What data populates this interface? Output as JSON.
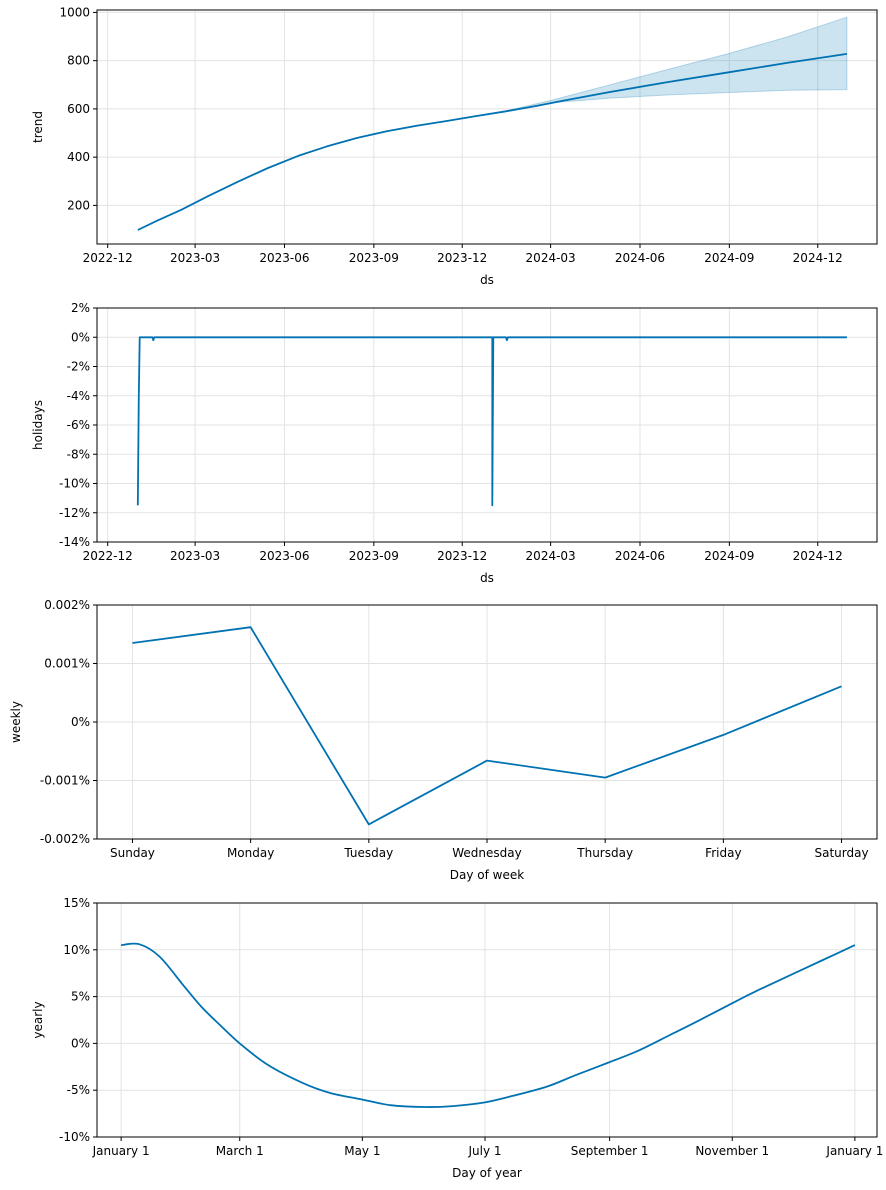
{
  "chart_data": [
    {
      "type": "line",
      "panel": "trend",
      "xlabel": "ds",
      "ylabel": "trend",
      "x_axis_type": "date",
      "xlim": [
        "2022-11-20",
        "2025-01-31"
      ],
      "ylim": [
        40,
        1010
      ],
      "x_ticks": [
        "2022-12-01",
        "2023-03-01",
        "2023-06-01",
        "2023-09-01",
        "2023-12-01",
        "2024-03-01",
        "2024-06-01",
        "2024-09-01",
        "2024-12-01"
      ],
      "x_tick_labels": [
        "2022-12",
        "2023-03",
        "2023-06",
        "2023-09",
        "2023-12",
        "2024-03",
        "2024-06",
        "2024-09",
        "2024-12"
      ],
      "y_ticks": [
        200,
        400,
        600,
        800,
        1000
      ],
      "y_tick_labels": [
        "200",
        "400",
        "600",
        "800",
        "1000"
      ],
      "grid": true,
      "series": [
        {
          "x": [
            "2023-01-01",
            "2023-01-20",
            "2023-02-15",
            "2023-03-15",
            "2023-04-15",
            "2023-05-15",
            "2023-06-15",
            "2023-07-15",
            "2023-08-15",
            "2023-09-15",
            "2023-10-15",
            "2023-11-15",
            "2023-12-15",
            "2024-01-15",
            "2024-02-15",
            "2024-03-15",
            "2024-05-01",
            "2024-07-01",
            "2024-09-01",
            "2024-11-01",
            "2024-12-31"
          ],
          "values": [
            98,
            135,
            182,
            240,
            300,
            355,
            405,
            445,
            480,
            508,
            530,
            550,
            570,
            590,
            612,
            635,
            670,
            712,
            752,
            792,
            828
          ]
        }
      ],
      "uncertainty_band": {
        "x": [
          "2024-01-15",
          "2024-03-01",
          "2024-05-01",
          "2024-07-01",
          "2024-09-01",
          "2024-11-01",
          "2024-12-31"
        ],
        "upper": [
          592,
          635,
          700,
          765,
          830,
          900,
          980
        ],
        "lower": [
          588,
          625,
          645,
          658,
          668,
          677,
          680
        ]
      }
    },
    {
      "type": "line",
      "panel": "holidays",
      "xlabel": "ds",
      "ylabel": "holidays",
      "x_axis_type": "date",
      "value_unit": "percent",
      "xlim": [
        "2022-11-20",
        "2025-01-31"
      ],
      "ylim": [
        -14,
        2
      ],
      "x_ticks": [
        "2022-12-01",
        "2023-03-01",
        "2023-06-01",
        "2023-09-01",
        "2023-12-01",
        "2024-03-01",
        "2024-06-01",
        "2024-09-01",
        "2024-12-01"
      ],
      "x_tick_labels": [
        "2022-12",
        "2023-03",
        "2023-06",
        "2023-09",
        "2023-12",
        "2024-03",
        "2024-06",
        "2024-09",
        "2024-12"
      ],
      "y_ticks": [
        2,
        0,
        -2,
        -4,
        -6,
        -8,
        -10,
        -12,
        -14
      ],
      "y_tick_labels": [
        "2%",
        "0%",
        "-2%",
        "-4%",
        "-6%",
        "-8%",
        "-10%",
        "-12%",
        "-14%"
      ],
      "grid": true,
      "series": [
        {
          "x": [
            "2023-01-01",
            "2023-01-02",
            "2023-01-03",
            "2023-01-16",
            "2023-01-17",
            "2023-01-18",
            "2024-01-01",
            "2024-01-01",
            "2024-01-02",
            "2024-01-03",
            "2024-01-15",
            "2024-01-16",
            "2024-01-17",
            "2024-12-31"
          ],
          "values": [
            -11.5,
            -4.0,
            0,
            0,
            -0.2,
            0,
            0,
            -11.5,
            0,
            0,
            0,
            -0.2,
            0,
            0
          ]
        }
      ]
    },
    {
      "type": "line",
      "panel": "weekly",
      "xlabel": "Day of week",
      "ylabel": "weekly",
      "value_unit": "percent",
      "categories": [
        "Sunday",
        "Monday",
        "Tuesday",
        "Wednesday",
        "Thursday",
        "Friday",
        "Saturday"
      ],
      "ylim": [
        -0.002,
        0.002
      ],
      "y_ticks": [
        0.002,
        0.001,
        0,
        -0.001,
        -0.002
      ],
      "y_tick_labels": [
        "0.002%",
        "0.001%",
        "0%",
        "-0.001%",
        "-0.002%"
      ],
      "grid": true,
      "series": [
        {
          "values": [
            0.00135,
            0.00162,
            -0.00175,
            -0.00066,
            -0.00095,
            -0.00022,
            0.00061
          ]
        }
      ]
    },
    {
      "type": "line",
      "panel": "yearly",
      "xlabel": "Day of year",
      "ylabel": "yearly",
      "value_unit": "percent",
      "x_axis_type": "date",
      "xlim": [
        "2016-12-20",
        "2018-01-12"
      ],
      "ylim": [
        -10,
        15
      ],
      "x_ticks": [
        "2017-01-01",
        "2017-03-01",
        "2017-05-01",
        "2017-07-01",
        "2017-09-01",
        "2017-11-01",
        "2018-01-01"
      ],
      "x_tick_labels": [
        "January 1",
        "March 1",
        "May 1",
        "July 1",
        "September 1",
        "November 1",
        "January 1"
      ],
      "y_ticks": [
        15,
        10,
        5,
        0,
        -5,
        -10
      ],
      "y_tick_labels": [
        "15%",
        "10%",
        "5%",
        "0%",
        "-5%",
        "-10%"
      ],
      "grid": true,
      "series": [
        {
          "x": [
            "2017-01-01",
            "2017-01-10",
            "2017-01-20",
            "2017-02-01",
            "2017-02-10",
            "2017-02-20",
            "2017-03-01",
            "2017-03-15",
            "2017-04-01",
            "2017-04-15",
            "2017-05-01",
            "2017-05-15",
            "2017-06-01",
            "2017-06-15",
            "2017-07-01",
            "2017-07-15",
            "2017-08-01",
            "2017-08-15",
            "2017-09-01",
            "2017-09-15",
            "2017-10-01",
            "2017-10-15",
            "2017-11-01",
            "2017-11-15",
            "2017-12-01",
            "2017-12-15",
            "2018-01-01"
          ],
          "values": [
            10.5,
            10.6,
            9.3,
            6.2,
            3.9,
            1.8,
            0.0,
            -2.3,
            -4.2,
            -5.3,
            -6.0,
            -6.6,
            -6.8,
            -6.7,
            -6.3,
            -5.6,
            -4.6,
            -3.4,
            -2.0,
            -0.8,
            0.9,
            2.4,
            4.3,
            5.8,
            7.4,
            8.8,
            10.5
          ]
        }
      ]
    }
  ]
}
